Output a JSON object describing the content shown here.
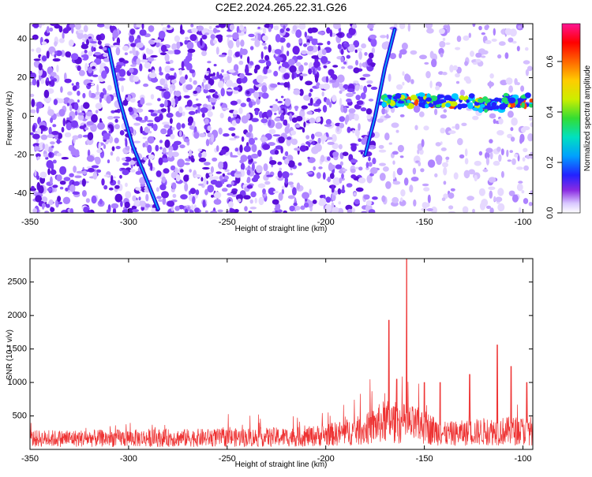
{
  "title": "C2E2.2024.265.22.31.G26",
  "chart_data": [
    {
      "type": "heatmap",
      "xlabel": "Height of straight line (km)",
      "ylabel": "Frequency (Hz)",
      "xlim": [
        -350,
        -95
      ],
      "ylim": [
        -50,
        48
      ],
      "x_ticks": [
        -350,
        -300,
        -250,
        -200,
        -150,
        -100
      ],
      "y_ticks": [
        -40,
        -20,
        0,
        20,
        40
      ],
      "colorbar": {
        "label": "Normalized spectral amplitude",
        "range": [
          0,
          0.75
        ],
        "ticks": [
          0.0,
          0.2,
          0.4,
          0.6
        ]
      },
      "features": [
        {
          "name": "diagonal streak A",
          "points": [
            [
              -310,
              35
            ],
            [
              -305,
              10
            ],
            [
              -298,
              -15
            ],
            [
              -290,
              -35
            ],
            [
              -285,
              -48
            ]
          ]
        },
        {
          "name": "diagonal streak B",
          "points": [
            [
              -180,
              -20
            ],
            [
              -175,
              0
            ],
            [
              -170,
              25
            ],
            [
              -165,
              45
            ]
          ]
        },
        {
          "name": "horizontal band",
          "freq_hz": 8,
          "from_km": -172,
          "to_km": -95,
          "peak_amplitude": 0.75
        }
      ]
    },
    {
      "type": "line",
      "xlabel": "Height of straight line (km)",
      "ylabel": "SNR (10 * v/v)",
      "xlim": [
        -350,
        -95
      ],
      "ylim": [
        0,
        2850
      ],
      "x_ticks": [
        -350,
        -300,
        -250,
        -200,
        -150,
        -100
      ],
      "y_ticks": [
        500,
        1000,
        1500,
        2000,
        2500
      ],
      "color": "#ee3333",
      "baseline": [
        [
          -350,
          230
        ],
        [
          -300,
          240
        ],
        [
          -250,
          250
        ],
        [
          -210,
          270
        ],
        [
          -195,
          330
        ],
        [
          -180,
          420
        ],
        [
          -170,
          600
        ],
        [
          -160,
          550
        ],
        [
          -150,
          480
        ],
        [
          -140,
          330
        ],
        [
          -130,
          350
        ],
        [
          -120,
          380
        ],
        [
          -110,
          390
        ],
        [
          -95,
          400
        ]
      ],
      "peaks": [
        {
          "x": -168,
          "y": 1930
        },
        {
          "x": -164,
          "y": 1050
        },
        {
          "x": -159,
          "y": 2850
        },
        {
          "x": -150,
          "y": 1000
        },
        {
          "x": -142,
          "y": 1000
        },
        {
          "x": -127,
          "y": 1120
        },
        {
          "x": -113,
          "y": 1560
        },
        {
          "x": -106,
          "y": 1240
        },
        {
          "x": -98,
          "y": 1000
        }
      ]
    }
  ]
}
